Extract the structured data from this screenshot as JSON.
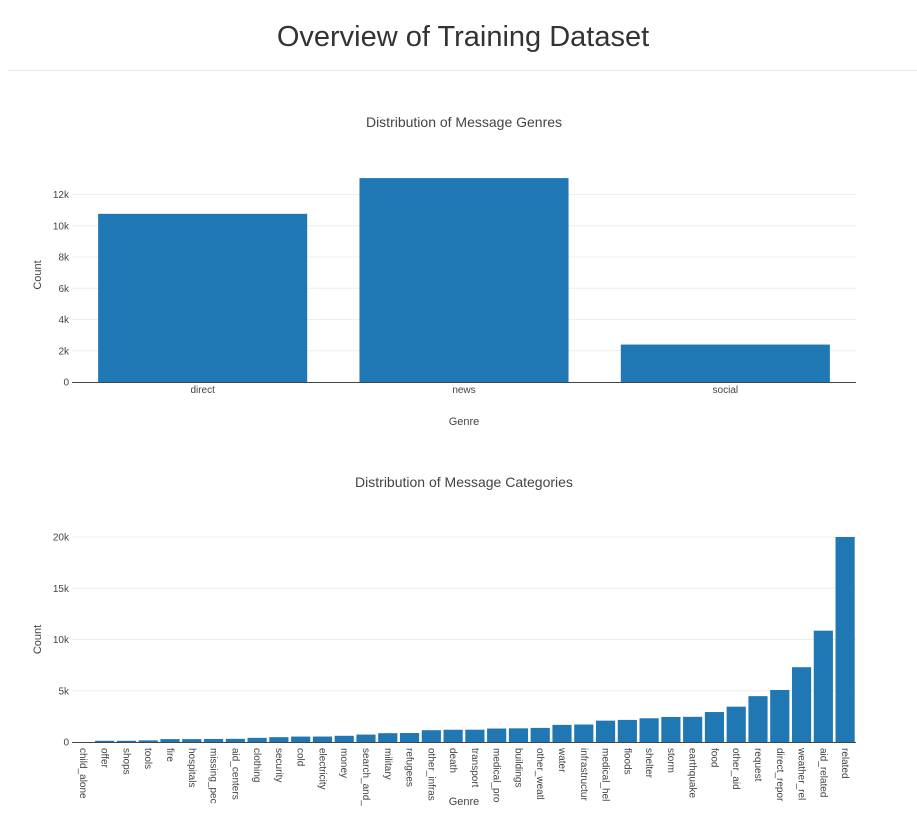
{
  "page": {
    "title": "Overview of Training Dataset"
  },
  "colors": {
    "bar": "#1f77b4",
    "grid": "#eeeeee",
    "axis": "#444444"
  },
  "chart_data": [
    {
      "type": "bar",
      "title": "Distribution of Message Genres",
      "xlabel": "Genre",
      "ylabel": "Count",
      "categories": [
        "direct",
        "news",
        "social"
      ],
      "values": [
        10766,
        13054,
        2396
      ],
      "ylim": [
        0,
        13700
      ],
      "yticks": [
        0,
        2000,
        4000,
        6000,
        8000,
        10000,
        12000
      ],
      "ytick_labels": [
        "0",
        "2k",
        "4k",
        "6k",
        "8k",
        "10k",
        "12k"
      ],
      "grid": true
    },
    {
      "type": "bar",
      "title": "Distribution of Message Categories",
      "xlabel": "Genre",
      "ylabel": "Count",
      "categories": [
        "child_alone",
        "offer",
        "shops",
        "tools",
        "fire",
        "hospitals",
        "missing_pec",
        "aid_centers",
        "clothing",
        "security",
        "cold",
        "electricity",
        "money",
        "search_and_",
        "military",
        "refugees",
        "other_infras",
        "death",
        "transport",
        "medical_pro",
        "buildings",
        "other_weatl",
        "water",
        "infrastructur",
        "medical_hel",
        "floods",
        "shelter",
        "storm",
        "earthquake",
        "food",
        "other_aid",
        "request",
        "direct_repor",
        "weather_rel",
        "aid_related",
        "related"
      ],
      "values": [
        0,
        118,
        120,
        159,
        282,
        283,
        298,
        309,
        405,
        471,
        530,
        532,
        604,
        724,
        860,
        875,
        1151,
        1194,
        1201,
        1313,
        1333,
        1376,
        1672,
        1705,
        2084,
        2155,
        2314,
        2443,
        2455,
        2923,
        3446,
        4474,
        5075,
        7297,
        10860,
        20000
      ],
      "ylim": [
        0,
        20000
      ],
      "yticks": [
        0,
        5000,
        10000,
        15000,
        20000
      ],
      "ytick_labels": [
        "0",
        "5k",
        "10k",
        "15k",
        "20k"
      ],
      "grid": true
    }
  ]
}
